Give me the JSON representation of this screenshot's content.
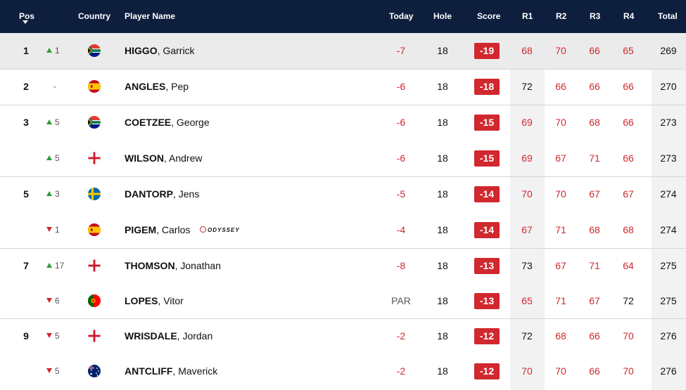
{
  "header": {
    "pos": "Pos",
    "country": "Country",
    "player": "Player Name",
    "today": "Today",
    "hole": "Hole",
    "score": "Score",
    "r1": "R1",
    "r2": "R2",
    "r3": "R3",
    "r4": "R4",
    "total": "Total"
  },
  "sponsor_logo": "ODYSSEY",
  "colors": {
    "header_bg": "#0e1e3d",
    "under_par": "#d0282e",
    "move_up": "#2e9e3a",
    "move_down": "#d0282e"
  },
  "rows": [
    {
      "pos": "1",
      "move_dir": "up",
      "move": "1",
      "country": "south-africa-flag",
      "last": "HIGGO",
      "first": ", Garrick",
      "today": "-7",
      "hole": "18",
      "score": "-19",
      "r1": "68",
      "r2": "70",
      "r3": "66",
      "r4": "65",
      "total": "269"
    },
    {
      "pos": "2",
      "move_dir": "none",
      "move": "-",
      "country": "spain-flag",
      "last": "ANGLES",
      "first": ", Pep",
      "today": "-6",
      "hole": "18",
      "score": "-18",
      "r1": "72",
      "r2": "66",
      "r3": "66",
      "r4": "66",
      "total": "270"
    },
    {
      "pos": "3",
      "move_dir": "up",
      "move": "5",
      "country": "south-africa-flag",
      "last": "COETZEE",
      "first": ", George",
      "today": "-6",
      "hole": "18",
      "score": "-15",
      "r1": "69",
      "r2": "70",
      "r3": "68",
      "r4": "66",
      "total": "273"
    },
    {
      "pos": "",
      "move_dir": "up",
      "move": "5",
      "country": "england-flag",
      "last": "WILSON",
      "first": ", Andrew",
      "today": "-6",
      "hole": "18",
      "score": "-15",
      "r1": "69",
      "r2": "67",
      "r3": "71",
      "r4": "66",
      "total": "273"
    },
    {
      "pos": "5",
      "move_dir": "up",
      "move": "3",
      "country": "sweden-flag",
      "last": "DANTORP",
      "first": ", Jens",
      "today": "-5",
      "hole": "18",
      "score": "-14",
      "r1": "70",
      "r2": "70",
      "r3": "67",
      "r4": "67",
      "total": "274"
    },
    {
      "pos": "",
      "move_dir": "down",
      "move": "1",
      "country": "spain-flag",
      "last": "PIGEM",
      "first": ", Carlos",
      "today": "-4",
      "hole": "18",
      "score": "-14",
      "r1": "67",
      "r2": "71",
      "r3": "68",
      "r4": "68",
      "total": "274"
    },
    {
      "pos": "7",
      "move_dir": "up",
      "move": "17",
      "country": "england-flag",
      "last": "THOMSON",
      "first": ", Jonathan",
      "today": "-8",
      "hole": "18",
      "score": "-13",
      "r1": "73",
      "r2": "67",
      "r3": "71",
      "r4": "64",
      "total": "275"
    },
    {
      "pos": "",
      "move_dir": "down",
      "move": "6",
      "country": "portugal-flag",
      "last": "LOPES",
      "first": ", Vitor",
      "today": "PAR",
      "hole": "18",
      "score": "-13",
      "r1": "65",
      "r2": "71",
      "r3": "67",
      "r4": "72",
      "total": "275"
    },
    {
      "pos": "9",
      "move_dir": "down",
      "move": "5",
      "country": "england-flag",
      "last": "WRISDALE",
      "first": ", Jordan",
      "today": "-2",
      "hole": "18",
      "score": "-12",
      "r1": "72",
      "r2": "68",
      "r3": "66",
      "r4": "70",
      "total": "276"
    },
    {
      "pos": "",
      "move_dir": "down",
      "move": "5",
      "country": "australia-flag",
      "last": "ANTCLIFF",
      "first": ", Maverick",
      "today": "-2",
      "hole": "18",
      "score": "-12",
      "r1": "70",
      "r2": "70",
      "r3": "66",
      "r4": "70",
      "total": "276"
    }
  ]
}
